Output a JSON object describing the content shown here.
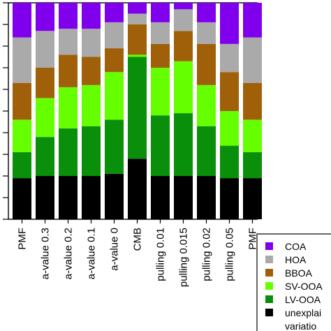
{
  "chart_data": {
    "type": "bar",
    "stacked": true,
    "percent_stacked": true,
    "categories": [
      "PMF",
      "a-value 0.3",
      "a-value 0.2",
      "a-value 0.1",
      "a-value 0",
      "CMB",
      "pulling 0.01",
      "pulling 0.015",
      "pulling 0.02",
      "pulling 0.05",
      "PMF"
    ],
    "ylim": [
      0,
      1
    ],
    "y_ticks": [
      0,
      0.1,
      0.2,
      0.3,
      0.4,
      0.5,
      0.6,
      0.7,
      0.8,
      0.9,
      1.0
    ],
    "y_tick_labels_visible": false,
    "grid": false,
    "legend_position": "bottom-right",
    "title": "",
    "xlabel": "",
    "ylabel": "",
    "series": [
      {
        "name": "unexplained variation",
        "color": "#000000",
        "values": [
          0.19,
          0.2,
          0.2,
          0.2,
          0.21,
          0.28,
          0.2,
          0.2,
          0.2,
          0.19,
          0.19
        ]
      },
      {
        "name": "LV-OOA",
        "color": "#0a8f0a",
        "values": [
          0.12,
          0.18,
          0.22,
          0.23,
          0.25,
          0.47,
          0.28,
          0.29,
          0.23,
          0.15,
          0.12
        ]
      },
      {
        "name": "SV-OOA",
        "color": "#66ff00",
        "values": [
          0.15,
          0.18,
          0.19,
          0.19,
          0.22,
          0.01,
          0.22,
          0.24,
          0.19,
          0.16,
          0.15
        ]
      },
      {
        "name": "BBOA",
        "color": "#a0600a",
        "values": [
          0.17,
          0.14,
          0.15,
          0.13,
          0.11,
          0.14,
          0.11,
          0.14,
          0.19,
          0.18,
          0.17
        ]
      },
      {
        "name": "HOA",
        "color": "#aaaaaa",
        "values": [
          0.21,
          0.17,
          0.12,
          0.13,
          0.12,
          0.05,
          0.1,
          0.1,
          0.1,
          0.13,
          0.21
        ]
      },
      {
        "name": "COA",
        "color": "#8000ee",
        "values": [
          0.16,
          0.13,
          0.12,
          0.12,
          0.09,
          0.05,
          0.09,
          0.03,
          0.09,
          0.19,
          0.16
        ]
      }
    ],
    "legend": {
      "entries": [
        {
          "label": "COA",
          "color": "#8000ee"
        },
        {
          "label": "HOA",
          "color": "#aaaaaa"
        },
        {
          "label": "BBOA",
          "color": "#a0600a"
        },
        {
          "label": "SV-OOA",
          "color": "#66ff00"
        },
        {
          "label": "LV-OOA",
          "color": "#0a8f0a"
        },
        {
          "label": "unexplai",
          "color": "#000000"
        },
        {
          "label": "variatio",
          "color": null
        }
      ]
    }
  }
}
